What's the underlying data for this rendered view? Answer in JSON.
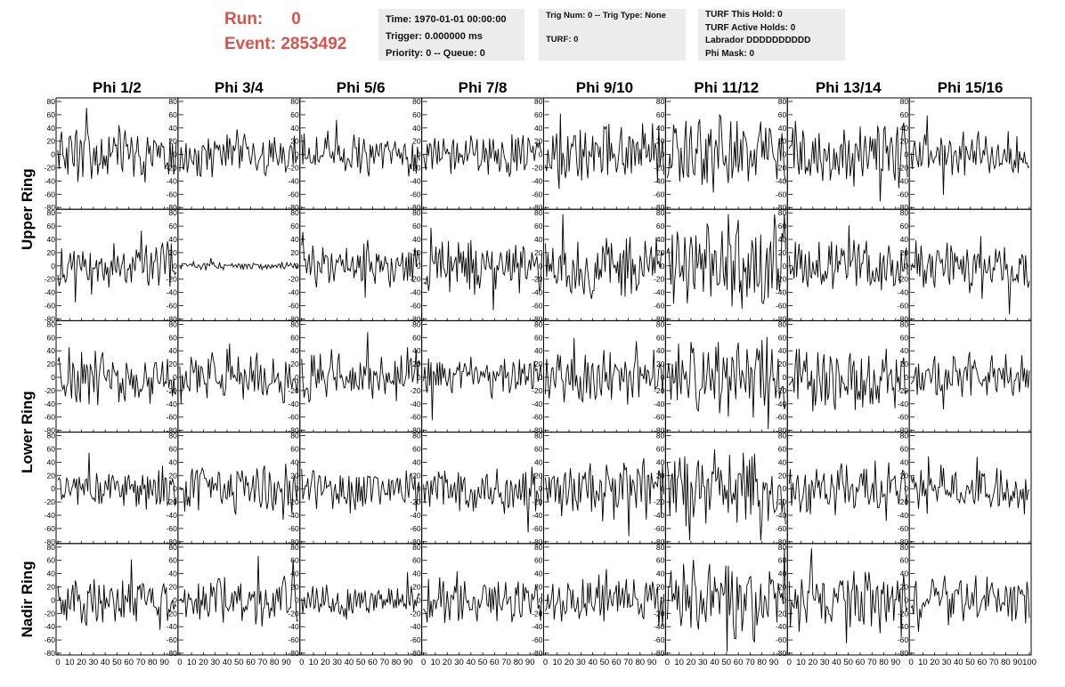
{
  "header": {
    "run_label": "Run:",
    "run_value": "0",
    "event_label": "Event:",
    "event_value": "2853492",
    "colors": {
      "run_event": "#d9534f",
      "panel_bg": "#ececec"
    }
  },
  "info_box_1": {
    "time": "Time: 1970-01-01 00:00:00",
    "trigger": "Trigger: 0.000000 ms",
    "priority": "Priority: 0 -- Queue: 0"
  },
  "info_box_2": {
    "trig": "Trig Num: 0 -- Trig Type: None",
    "turf": "TURF: 0"
  },
  "info_box_3": {
    "this_hold": "TURF This Hold: 0",
    "active_holds": "TURF Active Holds: 0",
    "labrador": "Labrador DDDDDDDDDD",
    "phi_mask": "Phi Mask: 0"
  },
  "chart_data": {
    "type": "line",
    "columns": [
      "Phi 1/2",
      "Phi 3/4",
      "Phi 5/6",
      "Phi 7/8",
      "Phi 9/10",
      "Phi 11/12",
      "Phi 13/14",
      "Phi 15/16"
    ],
    "ring_labels": [
      "Upper Ring",
      "Lower Ring",
      "Nadir Ring"
    ],
    "rows_per_ring": [
      2,
      2,
      1
    ],
    "xlim": [
      0,
      100
    ],
    "ylim": [
      -80,
      80
    ],
    "y_ticks": [
      -80,
      -60,
      -40,
      -20,
      0,
      20,
      40,
      60,
      80
    ],
    "x_tick_labels": [
      "0",
      "10",
      "20",
      "30",
      "40",
      "50",
      "60",
      "70",
      "80",
      "90",
      "100"
    ],
    "samples_per_trace": 96,
    "row_amplitudes": [
      [
        20,
        18,
        16,
        16,
        22,
        28,
        24,
        18
      ],
      [
        18,
        3,
        16,
        20,
        24,
        30,
        20,
        20
      ],
      [
        20,
        18,
        20,
        16,
        20,
        30,
        22,
        18
      ],
      [
        14,
        18,
        16,
        20,
        22,
        28,
        20,
        18
      ],
      [
        18,
        18,
        14,
        16,
        18,
        30,
        22,
        18
      ]
    ]
  }
}
